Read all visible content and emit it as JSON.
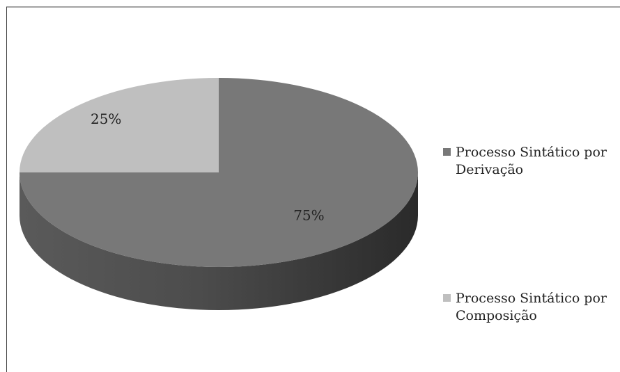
{
  "chart_data": {
    "type": "pie",
    "style": "3d",
    "categories": [
      "Processo Sintático por Derivação",
      "Processo Sintático por Composição"
    ],
    "values": [
      75,
      25
    ],
    "data_labels": [
      "75%",
      "25%"
    ],
    "colors": [
      "#787878",
      "#bfbfbf"
    ],
    "legend": {
      "position": "right",
      "entries": [
        {
          "line1": "Processo Sintático por",
          "line2": "Derivação"
        },
        {
          "line1": "Processo Sintático por",
          "line2": "Composição"
        }
      ]
    }
  }
}
